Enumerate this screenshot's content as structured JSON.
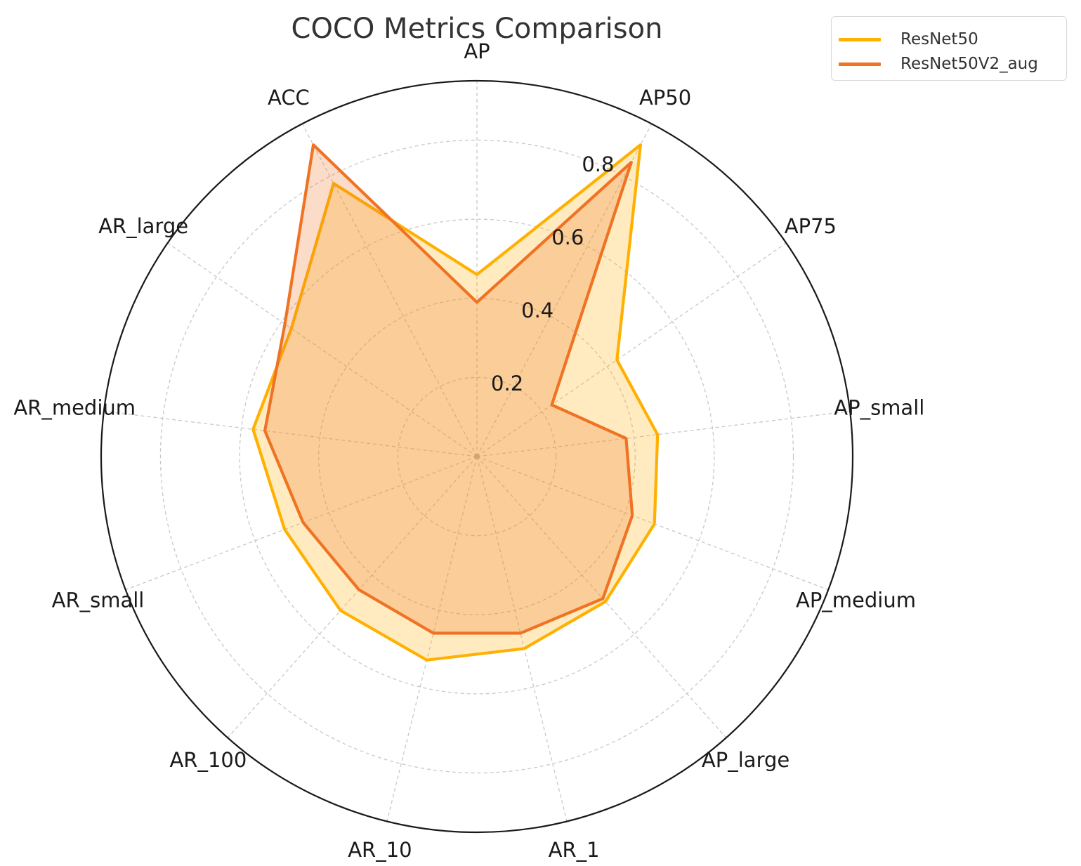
{
  "chart_data": {
    "type": "radar",
    "title": "COCO Metrics Comparison",
    "categories": [
      "AP",
      "AP50",
      "AP75",
      "AP_small",
      "AP_medium",
      "AP_large",
      "AR_1",
      "AR_10",
      "AR_100",
      "AR_small",
      "AR_medium",
      "AR_large",
      "ACC"
    ],
    "rlim": [
      0,
      0.95
    ],
    "rticks": [
      0.2,
      0.4,
      0.6,
      0.8
    ],
    "rtick_labels": [
      "0.2",
      "0.4",
      "0.6",
      "0.8"
    ],
    "grid": true,
    "legend_position": "top-right",
    "series": [
      {
        "name": "ResNet50",
        "color": "#FFB000",
        "values": [
          0.46,
          0.89,
          0.43,
          0.46,
          0.48,
          0.49,
          0.5,
          0.53,
          0.52,
          0.52,
          0.57,
          0.57,
          0.78
        ]
      },
      {
        "name": "ResNet50V2_aug",
        "color": "#F07223",
        "values": [
          0.39,
          0.84,
          0.23,
          0.38,
          0.42,
          0.48,
          0.46,
          0.46,
          0.45,
          0.47,
          0.54,
          0.59,
          0.89
        ]
      }
    ]
  },
  "legend": {
    "items": [
      {
        "label": "ResNet50",
        "color": "#FFB000"
      },
      {
        "label": "ResNet50V2_aug",
        "color": "#F07223"
      }
    ]
  }
}
